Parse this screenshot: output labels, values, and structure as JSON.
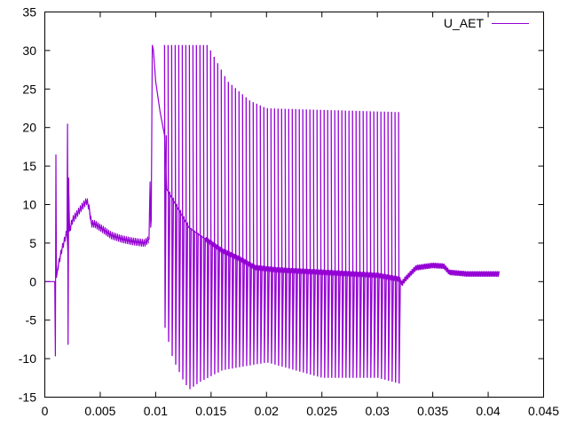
{
  "chart_data": {
    "type": "line",
    "title": "",
    "xlabel": "",
    "ylabel": "",
    "xlim": [
      0,
      0.045
    ],
    "ylim": [
      -15,
      35
    ],
    "xticks": [
      "0",
      "0.005",
      "0.01",
      "0.015",
      "0.02",
      "0.025",
      "0.03",
      "0.035",
      "0.04",
      "0.045"
    ],
    "xtick_values": [
      0,
      0.005,
      0.01,
      0.015,
      0.02,
      0.025,
      0.03,
      0.035,
      0.04,
      0.045
    ],
    "yticks": [
      "-15",
      "-10",
      "-5",
      "0",
      "5",
      "10",
      "15",
      "20",
      "25",
      "30",
      "35"
    ],
    "ytick_values": [
      -15,
      -10,
      -5,
      0,
      5,
      10,
      15,
      20,
      25,
      30,
      35
    ],
    "grid": false,
    "legend": {
      "position": "top-right",
      "entries": [
        "U_AET"
      ]
    },
    "series": [
      {
        "name": "U_AET",
        "color": "#9400d3",
        "baseline": {
          "x": [
            0,
            0.0009,
            0.00095,
            0.001,
            0.00105,
            0.0012,
            0.0015,
            0.0018,
            0.002,
            0.00205,
            0.0021,
            0.00215,
            0.0022,
            0.0025,
            0.003,
            0.0035,
            0.0038,
            0.004,
            0.0042,
            0.0045,
            0.005,
            0.006,
            0.007,
            0.008,
            0.009,
            0.0094,
            0.0095,
            0.00955,
            0.0096,
            0.0097,
            0.0098,
            0.01,
            0.0104,
            0.0108,
            0.011,
            0.013,
            0.015,
            0.016,
            0.0175,
            0.019,
            0.021,
            0.025,
            0.03,
            0.032,
            0.0322,
            0.0325,
            0.0335,
            0.035,
            0.036,
            0.0365,
            0.038,
            0.041
          ],
          "y": [
            0,
            0,
            -9.7,
            16.5,
            0.5,
            2,
            4,
            5.5,
            6.5,
            20.5,
            -8.2,
            13.5,
            6.5,
            8,
            9,
            10,
            10.5,
            9.5,
            7.5,
            7.5,
            7,
            6,
            5.5,
            5.2,
            5,
            5.5,
            13,
            7,
            8,
            30.7,
            30,
            26,
            22,
            19,
            12,
            7,
            5,
            4,
            3,
            1.8,
            1.5,
            1.2,
            0.8,
            0.3,
            -0.3,
            0.3,
            1.8,
            2.1,
            2,
            1.2,
            1,
            1
          ]
        },
        "oscillation": {
          "x_start": 0.0108,
          "x_end": 0.0321,
          "period": 0.00032,
          "peak_envelope": {
            "x": [
              0.0108,
              0.0147,
              0.0165,
              0.0185,
              0.02,
              0.0321
            ],
            "y": [
              30.7,
              30.7,
              26,
              23.5,
              22.5,
              22
            ]
          },
          "trough_envelope": {
            "x": [
              0.0108,
              0.0115,
              0.0125,
              0.013,
              0.014,
              0.016,
              0.02,
              0.025,
              0.03,
              0.0321
            ],
            "y": [
              -6,
              -10,
              -13,
              -14,
              -13,
              -11.5,
              -10.5,
              -12.5,
              -12.5,
              -13.3
            ]
          }
        }
      }
    ]
  }
}
